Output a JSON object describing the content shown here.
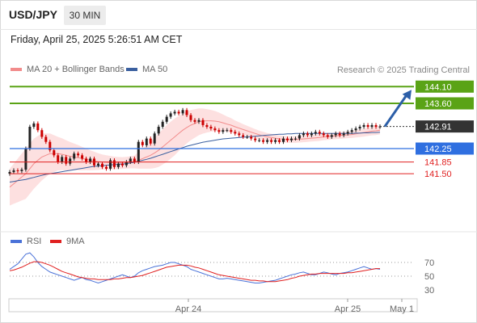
{
  "header": {
    "symbol": "USD/JPY",
    "timeframe": "30 MIN",
    "timestamp": "Friday, April 25, 2025 5:26:51 AM CET"
  },
  "legend": {
    "ma20": "MA 20 + Bollinger Bands",
    "ma50": "MA 50",
    "credit": "Research © 2025 Trading Central",
    "rsi": "RSI",
    "rsi_ma": "9MA"
  },
  "colors": {
    "up_candle": "#222222",
    "down_candle": "#cc0000",
    "bollinger_fill": "#fde0e0",
    "ma20": "#f28b8b",
    "ma50": "#3a5f9f",
    "resistance": "#5aa316",
    "support": "#2f6fe0",
    "minor_level": "#e02020",
    "current": "#333333",
    "forecast_arrow": "#2c5fa8",
    "rsi": "#4a72d8",
    "rsi_ma": "#e02020"
  },
  "chart_data": [
    {
      "type": "candlestick",
      "x_ticks": [
        "Apr 24",
        "Apr 25",
        "May 1"
      ],
      "ylim": [
        140.5,
        144.5
      ],
      "current_price": 142.91,
      "levels": [
        {
          "value": 144.1,
          "label": "144.10",
          "kind": "resistance"
        },
        {
          "value": 143.6,
          "label": "143.60",
          "kind": "resistance"
        },
        {
          "value": 142.91,
          "label": "142.91",
          "kind": "current"
        },
        {
          "value": 142.25,
          "label": "142.25",
          "kind": "support"
        },
        {
          "value": 141.85,
          "label": "141.85",
          "kind": "minor"
        },
        {
          "value": 141.5,
          "label": "141.50",
          "kind": "minor"
        }
      ],
      "forecast_target": 144.1,
      "close": [
        141.55,
        141.6,
        141.58,
        141.62,
        142.25,
        142.9,
        143.0,
        142.8,
        142.6,
        142.45,
        142.2,
        142.05,
        141.85,
        142.0,
        141.8,
        141.95,
        142.1,
        142.05,
        141.95,
        141.85,
        141.95,
        141.75,
        141.8,
        141.7,
        141.65,
        141.9,
        141.7,
        141.8,
        141.75,
        141.85,
        141.95,
        141.85,
        142.45,
        142.35,
        142.55,
        142.4,
        142.7,
        142.9,
        143.05,
        143.2,
        143.3,
        143.35,
        143.3,
        143.4,
        143.25,
        143.1,
        143.05,
        143.1,
        142.95,
        142.9,
        142.85,
        142.8,
        142.75,
        142.8,
        142.8,
        142.75,
        142.7,
        142.65,
        142.6,
        142.6,
        142.55,
        142.5,
        142.5,
        142.45,
        142.5,
        142.45,
        142.5,
        142.45,
        142.55,
        142.5,
        142.55,
        142.55,
        142.65,
        142.7,
        142.65,
        142.7,
        142.75,
        142.7,
        142.65,
        142.6,
        142.65,
        142.7,
        142.65,
        142.7,
        142.75,
        142.8,
        142.85,
        142.9,
        142.95,
        142.9,
        142.95,
        142.9,
        142.91
      ],
      "open": [
        141.5,
        141.55,
        141.6,
        141.58,
        141.62,
        142.25,
        142.9,
        143.0,
        142.8,
        142.6,
        142.45,
        142.2,
        142.05,
        141.85,
        142.0,
        141.8,
        141.95,
        142.1,
        142.05,
        141.95,
        141.85,
        141.95,
        141.75,
        141.8,
        141.7,
        141.65,
        141.9,
        141.7,
        141.8,
        141.75,
        141.85,
        141.95,
        141.85,
        142.45,
        142.35,
        142.55,
        142.4,
        142.7,
        142.9,
        143.05,
        143.2,
        143.3,
        143.35,
        143.3,
        143.4,
        143.25,
        143.1,
        143.05,
        143.1,
        142.95,
        142.9,
        142.85,
        142.8,
        142.75,
        142.8,
        142.8,
        142.75,
        142.7,
        142.65,
        142.6,
        142.6,
        142.55,
        142.5,
        142.5,
        142.45,
        142.5,
        142.45,
        142.5,
        142.45,
        142.55,
        142.5,
        142.55,
        142.55,
        142.65,
        142.7,
        142.65,
        142.7,
        142.75,
        142.7,
        142.65,
        142.6,
        142.65,
        142.7,
        142.65,
        142.7,
        142.75,
        142.8,
        142.85,
        142.9,
        142.95,
        142.9,
        142.95,
        142.9
      ],
      "ma20": [
        141.1,
        141.2,
        141.3,
        141.4,
        141.5,
        141.65,
        141.8,
        141.9,
        142.0,
        142.05,
        142.1,
        142.1,
        142.1,
        142.08,
        142.05,
        142.02,
        142.0,
        141.98,
        141.95,
        141.93,
        141.9,
        141.88,
        141.86,
        141.85,
        141.84,
        141.83,
        141.82,
        141.82,
        141.82,
        141.83,
        141.84,
        141.85,
        141.9,
        141.95,
        142.0,
        142.05,
        142.12,
        142.2,
        142.3,
        142.4,
        142.5,
        142.6,
        142.7,
        142.8,
        142.88,
        142.95,
        143.0,
        143.05,
        143.07,
        143.08,
        143.08,
        143.07,
        143.05,
        143.02,
        142.98,
        142.95,
        142.9,
        142.86,
        142.82,
        142.78,
        142.74,
        142.7,
        142.66,
        142.63,
        142.6,
        142.58,
        142.56,
        142.54,
        142.53,
        142.52,
        142.52,
        142.52,
        142.53,
        142.54,
        142.55,
        142.56,
        142.57,
        142.58,
        142.6,
        142.61,
        142.62,
        142.63,
        142.64,
        142.65,
        142.66,
        142.67,
        142.69,
        142.71,
        142.73,
        142.75,
        142.77,
        142.78,
        142.8
      ],
      "ma50": [
        141.25,
        141.27,
        141.29,
        141.31,
        141.33,
        141.36,
        141.39,
        141.42,
        141.45,
        141.48,
        141.5,
        141.52,
        141.54,
        141.56,
        141.58,
        141.6,
        141.62,
        141.64,
        141.66,
        141.68,
        141.7,
        141.72,
        141.73,
        141.74,
        141.75,
        141.76,
        141.77,
        141.78,
        141.79,
        141.8,
        141.82,
        141.84,
        141.87,
        141.9,
        141.93,
        141.96,
        142.0,
        142.04,
        142.08,
        142.12,
        142.16,
        142.2,
        142.24,
        142.28,
        142.32,
        142.35,
        142.38,
        142.41,
        142.44,
        142.46,
        142.48,
        142.5,
        142.52,
        142.54,
        142.55,
        142.56,
        142.57,
        142.58,
        142.59,
        142.6,
        142.61,
        142.62,
        142.63,
        142.64,
        142.65,
        142.66,
        142.67,
        142.68,
        142.68,
        142.69,
        142.69,
        142.7,
        142.7,
        142.7,
        142.7,
        142.7,
        142.7,
        142.7,
        142.7,
        142.7,
        142.7,
        142.7,
        142.7,
        142.7,
        142.7,
        142.7,
        142.71,
        142.71,
        142.72,
        142.72,
        142.73,
        142.73,
        142.74
      ],
      "bb_width": [
        1.1,
        1.2,
        1.3,
        1.4,
        1.5,
        1.5,
        1.5,
        1.45,
        1.4,
        1.3,
        1.2,
        1.1,
        1.0,
        0.95,
        0.9,
        0.85,
        0.8,
        0.75,
        0.7,
        0.65,
        0.6,
        0.55,
        0.5,
        0.45,
        0.42,
        0.4,
        0.38,
        0.36,
        0.35,
        0.35,
        0.36,
        0.38,
        0.5,
        0.6,
        0.7,
        0.8,
        0.9,
        1.0,
        1.05,
        1.1,
        1.1,
        1.1,
        1.05,
        1.0,
        0.95,
        0.9,
        0.85,
        0.8,
        0.75,
        0.7,
        0.65,
        0.6,
        0.55,
        0.5,
        0.46,
        0.42,
        0.38,
        0.35,
        0.32,
        0.3,
        0.28,
        0.26,
        0.25,
        0.24,
        0.23,
        0.22,
        0.21,
        0.2,
        0.2,
        0.2,
        0.2,
        0.2,
        0.2,
        0.2,
        0.2,
        0.2,
        0.2,
        0.2,
        0.2,
        0.2,
        0.2,
        0.2,
        0.2,
        0.2,
        0.2,
        0.21,
        0.22,
        0.23,
        0.24,
        0.25,
        0.25,
        0.25,
        0.25
      ]
    },
    {
      "type": "line",
      "ylim": [
        20,
        90
      ],
      "y_ticks": [
        "70",
        "50",
        "30"
      ],
      "series": [
        {
          "name": "RSI",
          "values": [
            60,
            64,
            68,
            75,
            82,
            84,
            78,
            70,
            64,
            60,
            56,
            54,
            52,
            50,
            48,
            46,
            44,
            46,
            48,
            45,
            44,
            42,
            40,
            42,
            44,
            46,
            48,
            50,
            52,
            50,
            48,
            50,
            55,
            58,
            60,
            62,
            64,
            65,
            66,
            68,
            70,
            70,
            68,
            66,
            64,
            60,
            58,
            56,
            54,
            52,
            50,
            48,
            46,
            46,
            47,
            46,
            45,
            44,
            43,
            42,
            41,
            40,
            40,
            41,
            42,
            43,
            44,
            46,
            48,
            50,
            52,
            53,
            55,
            56,
            54,
            52,
            52,
            54,
            56,
            55,
            53,
            52,
            54,
            55,
            56,
            58,
            60,
            62,
            64,
            62,
            60,
            61,
            60
          ]
        },
        {
          "name": "9MA",
          "values": [
            58,
            59,
            61,
            63,
            66,
            69,
            71,
            71,
            70,
            68,
            66,
            63,
            60,
            57,
            55,
            53,
            51,
            49,
            48,
            47,
            46,
            46,
            45,
            45,
            45,
            45,
            46,
            46,
            47,
            48,
            48,
            49,
            50,
            51,
            53,
            55,
            57,
            59,
            61,
            63,
            64,
            65,
            66,
            66,
            66,
            65,
            63,
            62,
            60,
            58,
            56,
            54,
            52,
            51,
            50,
            49,
            48,
            47,
            46,
            45,
            44,
            44,
            43,
            43,
            42,
            42,
            42,
            43,
            44,
            45,
            47,
            48,
            50,
            51,
            52,
            53,
            53,
            54,
            54,
            54,
            54,
            54,
            54,
            54,
            55,
            55,
            56,
            57,
            58,
            59,
            60,
            61,
            61
          ]
        }
      ]
    }
  ]
}
